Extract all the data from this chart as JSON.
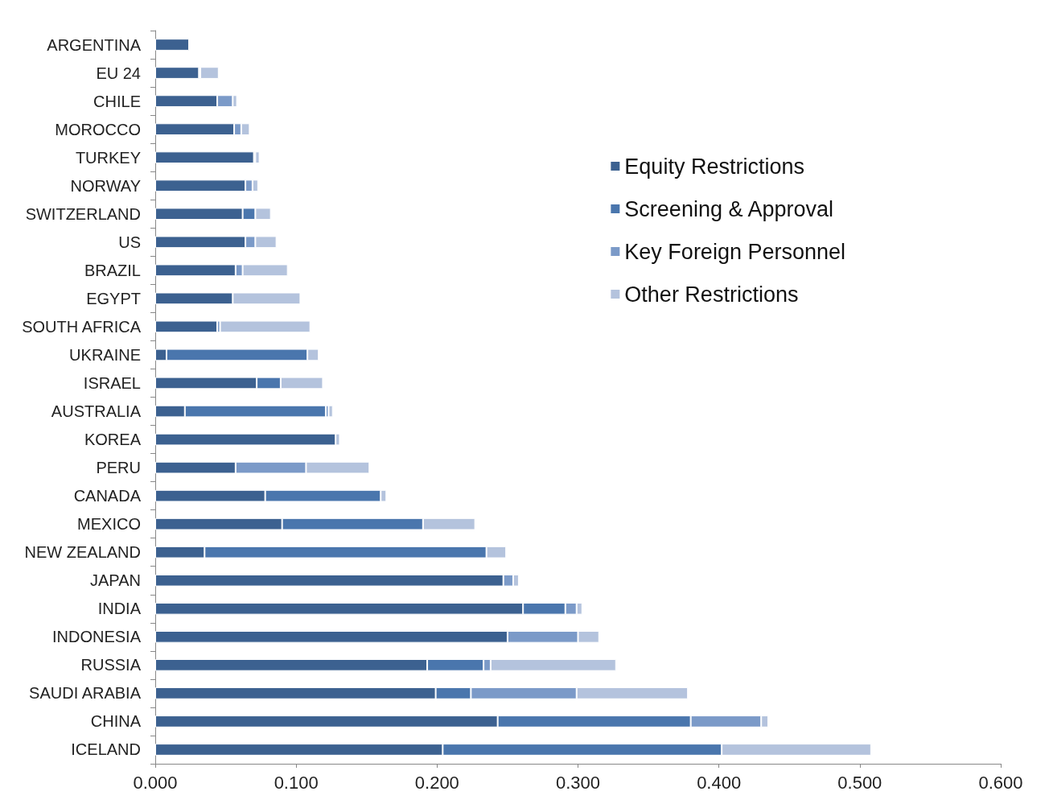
{
  "chart_data": {
    "type": "bar",
    "orientation": "horizontal",
    "stacked": true,
    "categories": [
      "ARGENTINA",
      "EU 24",
      "CHILE",
      "MOROCCO",
      "TURKEY",
      "NORWAY",
      "SWITZERLAND",
      "US",
      "BRAZIL",
      "EGYPT",
      "SOUTH AFRICA",
      "UKRAINE",
      "ISRAEL",
      "AUSTRALIA",
      "KOREA",
      "PERU",
      "CANADA",
      "MEXICO",
      "NEW ZEALAND",
      "JAPAN",
      "INDIA",
      "INDONESIA",
      "RUSSIA",
      "SAUDI ARABIA",
      "CHINA",
      "ICELAND"
    ],
    "series": [
      {
        "name": "Equity Restrictions",
        "color": "#3c6190",
        "values": [
          0.024,
          0.031,
          0.044,
          0.056,
          0.07,
          0.064,
          0.062,
          0.064,
          0.057,
          0.055,
          0.044,
          0.008,
          0.072,
          0.021,
          0.128,
          0.057,
          0.078,
          0.09,
          0.035,
          0.247,
          0.261,
          0.25,
          0.193,
          0.199,
          0.243,
          0.204
        ]
      },
      {
        "name": "Screening & Approval",
        "color": "#4a76ad",
        "values": [
          0,
          0,
          0,
          0,
          0,
          0,
          0.009,
          0,
          0,
          0,
          0,
          0.1,
          0.017,
          0.1,
          0,
          0,
          0.082,
          0.1,
          0.2,
          0,
          0.03,
          0,
          0.04,
          0.025,
          0.137,
          0.198
        ]
      },
      {
        "name": "Key Foreign Personnel",
        "color": "#7b9ac8",
        "values": [
          0,
          0.001,
          0.011,
          0.005,
          0.001,
          0.005,
          0,
          0.007,
          0.005,
          0,
          0.002,
          0,
          0,
          0.002,
          0,
          0.05,
          0,
          0,
          0,
          0.007,
          0.008,
          0.05,
          0.005,
          0.075,
          0.05,
          0
        ]
      },
      {
        "name": "Other Restrictions",
        "color": "#b4c3dd",
        "values": [
          0,
          0.013,
          0.003,
          0.006,
          0.003,
          0.004,
          0.011,
          0.015,
          0.032,
          0.048,
          0.064,
          0.008,
          0.03,
          0.003,
          0.003,
          0.045,
          0.004,
          0.037,
          0.014,
          0.004,
          0.004,
          0.015,
          0.089,
          0.079,
          0.005,
          0.106
        ]
      }
    ],
    "xlim": [
      0,
      0.6
    ],
    "xticks": [
      {
        "value": 0,
        "label": "0.000"
      },
      {
        "value": 0.1,
        "label": "0.100"
      },
      {
        "value": 0.2,
        "label": "0.200"
      },
      {
        "value": 0.3,
        "label": "0.300"
      },
      {
        "value": 0.4,
        "label": "0.400"
      },
      {
        "value": 0.5,
        "label": "0.500"
      },
      {
        "value": 0.6,
        "label": "0.600"
      }
    ],
    "grid": false,
    "legend": "top right"
  }
}
